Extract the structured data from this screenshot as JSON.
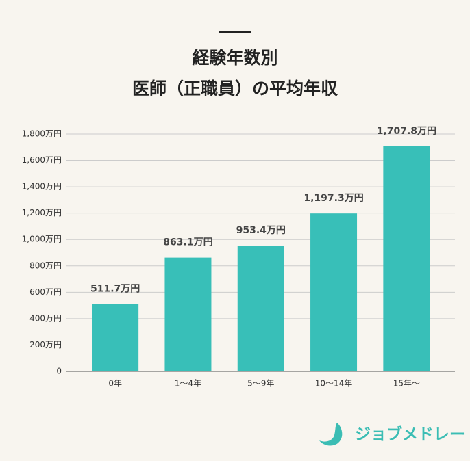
{
  "chart_data": {
    "type": "bar",
    "title_lines": [
      "経験年数別",
      "医師（正職員）の平均年収"
    ],
    "categories": [
      "0年",
      "1〜4年",
      "5〜9年",
      "10〜14年",
      "15年〜"
    ],
    "values": [
      511.7,
      863.1,
      953.4,
      1197.3,
      1707.8
    ],
    "value_labels": [
      "511.7万円",
      "863.1万円",
      "953.4万円",
      "1,197.3万円",
      "1,707.8万円"
    ],
    "color": "#38bfb8",
    "ylim": [
      0,
      1800
    ],
    "yticks": [
      0,
      {
        "value": 200,
        "label": "200万円"
      },
      {
        "value": 400,
        "label": "400万円"
      },
      {
        "value": 600,
        "label": "600万円"
      },
      {
        "value": 800,
        "label": "800万円"
      },
      {
        "value": 1000,
        "label": "1,000万円"
      },
      {
        "value": 1200,
        "label": "1,200万円"
      },
      {
        "value": 1400,
        "label": "1,400万円"
      },
      {
        "value": 1600,
        "label": "1,600万円"
      },
      {
        "value": 1800,
        "label": "1,800万円"
      }
    ],
    "grid": true
  },
  "brand": "ジョブメドレー"
}
